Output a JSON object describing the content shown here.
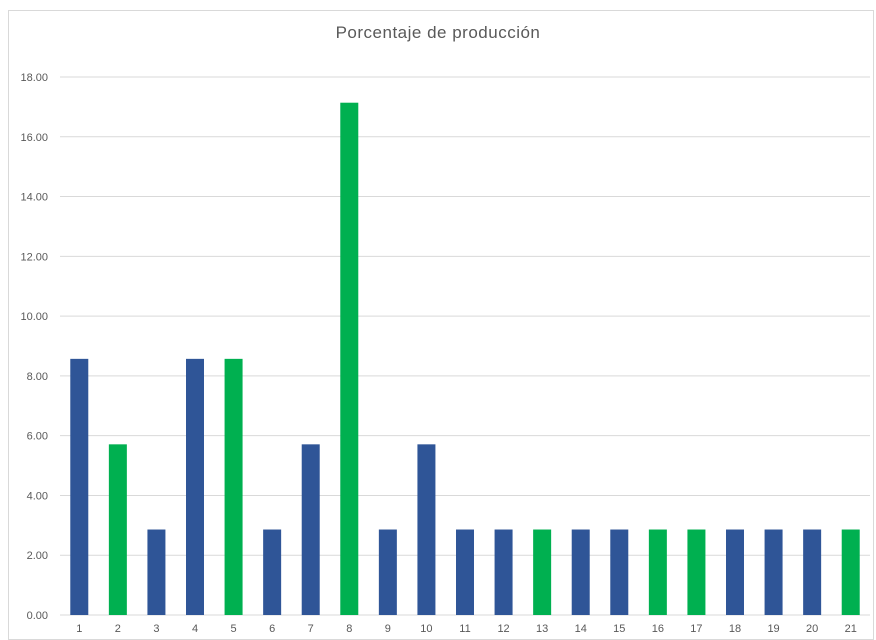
{
  "chart_data": {
    "type": "bar",
    "title": "Porcentaje  de  producción",
    "xlabel": "",
    "ylabel": "",
    "ylim": [
      0,
      18
    ],
    "yticks": [
      "0.00",
      "2.00",
      "4.00",
      "6.00",
      "8.00",
      "10.00",
      "12.00",
      "14.00",
      "16.00",
      "18.00"
    ],
    "grid": true,
    "categories": [
      "1",
      "2",
      "3",
      "4",
      "5",
      "6",
      "7",
      "8",
      "9",
      "10",
      "11",
      "12",
      "13",
      "14",
      "15",
      "16",
      "17",
      "18",
      "19",
      "20",
      "21"
    ],
    "values": [
      8.57,
      5.71,
      2.86,
      8.57,
      8.57,
      2.86,
      5.71,
      17.14,
      2.86,
      5.71,
      2.86,
      2.86,
      2.86,
      2.86,
      2.86,
      2.86,
      2.86,
      2.86,
      2.86,
      2.86,
      2.86
    ],
    "bar_colors": [
      "#2f5597",
      "#00b050",
      "#2f5597",
      "#2f5597",
      "#00b050",
      "#2f5597",
      "#2f5597",
      "#00b050",
      "#2f5597",
      "#2f5597",
      "#2f5597",
      "#2f5597",
      "#00b050",
      "#2f5597",
      "#2f5597",
      "#00b050",
      "#00b050",
      "#2f5597",
      "#2f5597",
      "#2f5597",
      "#00b050"
    ],
    "colors": {
      "blue": "#2f5597",
      "green": "#00b050",
      "grid": "#d9d9d9",
      "text": "#595959"
    }
  }
}
